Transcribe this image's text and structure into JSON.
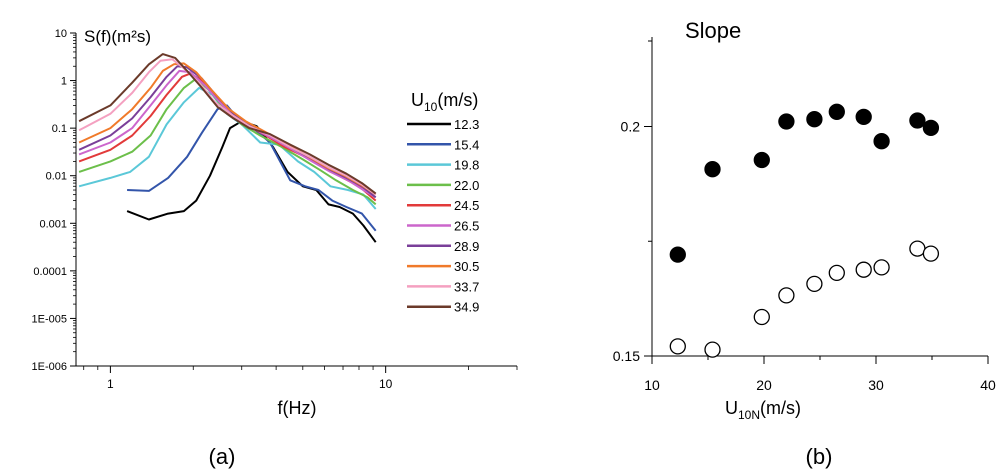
{
  "chart_data": [
    {
      "type": "line",
      "panel_label": "(a)",
      "ylabel": "S(f)(m²s)",
      "xlabel": "f(Hz)",
      "x_scale": "log",
      "y_scale": "log",
      "xlim": [
        0.75,
        30
      ],
      "ylim": [
        1e-06,
        10
      ],
      "x_ticks": [
        1,
        10
      ],
      "x_tick_labels": [
        "1",
        "10"
      ],
      "y_ticks": [
        10,
        1,
        0.1,
        0.01,
        0.001,
        0.0001,
        1e-05,
        1e-06
      ],
      "y_tick_labels": [
        "10",
        "1",
        "0.1",
        "0.01",
        "0.001",
        "0.0001",
        "1E-005",
        "1E-006"
      ],
      "legend_title": "U10(m/s)",
      "legend_title_main": "U",
      "legend_title_sub": "10",
      "legend_title_unit": "(m/s)",
      "legend_placement": "right",
      "series": [
        {
          "name": "12.3",
          "color": "#000000",
          "points": [
            [
              1.15,
              0.0018
            ],
            [
              1.38,
              0.0012
            ],
            [
              1.62,
              0.0016
            ],
            [
              1.85,
              0.0018
            ],
            [
              2.05,
              0.003
            ],
            [
              2.3,
              0.01
            ],
            [
              2.55,
              0.04
            ],
            [
              2.72,
              0.1
            ],
            [
              3.0,
              0.14
            ],
            [
              3.4,
              0.11
            ],
            [
              3.9,
              0.04
            ],
            [
              4.4,
              0.012
            ],
            [
              5.0,
              0.006
            ],
            [
              5.6,
              0.005
            ],
            [
              6.2,
              0.0025
            ],
            [
              6.8,
              0.0022
            ],
            [
              7.6,
              0.0016
            ],
            [
              8.3,
              0.0009
            ],
            [
              9.2,
              0.0004
            ]
          ]
        },
        {
          "name": "15.4",
          "color": "#3355aa",
          "points": [
            [
              1.15,
              0.005
            ],
            [
              1.38,
              0.0048
            ],
            [
              1.62,
              0.009
            ],
            [
              1.9,
              0.025
            ],
            [
              2.15,
              0.08
            ],
            [
              2.45,
              0.25
            ],
            [
              2.65,
              0.3
            ],
            [
              2.9,
              0.16
            ],
            [
              3.3,
              0.1
            ],
            [
              3.8,
              0.05
            ],
            [
              4.5,
              0.008
            ],
            [
              5.1,
              0.006
            ],
            [
              5.7,
              0.005
            ],
            [
              6.4,
              0.003
            ],
            [
              7.2,
              0.0022
            ],
            [
              8.2,
              0.0016
            ],
            [
              9.2,
              0.0007
            ]
          ]
        },
        {
          "name": "19.8",
          "color": "#5bc8d8",
          "points": [
            [
              0.77,
              0.006
            ],
            [
              1.0,
              0.009
            ],
            [
              1.18,
              0.012
            ],
            [
              1.38,
              0.025
            ],
            [
              1.6,
              0.12
            ],
            [
              1.85,
              0.35
            ],
            [
              2.1,
              0.7
            ],
            [
              2.35,
              0.5
            ],
            [
              2.65,
              0.2
            ],
            [
              3.0,
              0.12
            ],
            [
              3.5,
              0.05
            ],
            [
              4.1,
              0.045
            ],
            [
              4.8,
              0.02
            ],
            [
              5.5,
              0.012
            ],
            [
              6.3,
              0.006
            ],
            [
              7.3,
              0.005
            ],
            [
              8.3,
              0.004
            ],
            [
              9.2,
              0.002
            ]
          ]
        },
        {
          "name": "22.0",
          "color": "#6cbf4a",
          "points": [
            [
              0.77,
              0.012
            ],
            [
              1.0,
              0.02
            ],
            [
              1.2,
              0.032
            ],
            [
              1.4,
              0.07
            ],
            [
              1.6,
              0.25
            ],
            [
              1.85,
              0.7
            ],
            [
              2.05,
              1.1
            ],
            [
              2.3,
              0.6
            ],
            [
              2.6,
              0.25
            ],
            [
              3.0,
              0.12
            ],
            [
              3.5,
              0.07
            ],
            [
              4.2,
              0.04
            ],
            [
              5.0,
              0.022
            ],
            [
              5.8,
              0.013
            ],
            [
              6.6,
              0.008
            ],
            [
              7.6,
              0.005
            ],
            [
              8.6,
              0.0035
            ],
            [
              9.2,
              0.0025
            ]
          ]
        },
        {
          "name": "24.5",
          "color": "#e23a3a",
          "points": [
            [
              0.77,
              0.02
            ],
            [
              1.0,
              0.035
            ],
            [
              1.2,
              0.07
            ],
            [
              1.4,
              0.18
            ],
            [
              1.6,
              0.5
            ],
            [
              1.82,
              1.2
            ],
            [
              1.95,
              1.4
            ],
            [
              2.1,
              1.1
            ],
            [
              2.4,
              0.5
            ],
            [
              2.7,
              0.2
            ],
            [
              3.1,
              0.12
            ],
            [
              3.6,
              0.075
            ],
            [
              4.3,
              0.04
            ],
            [
              5.1,
              0.025
            ],
            [
              6.0,
              0.015
            ],
            [
              7.0,
              0.009
            ],
            [
              8.0,
              0.006
            ],
            [
              9.2,
              0.003
            ]
          ]
        },
        {
          "name": "26.5",
          "color": "#cc66cc",
          "points": [
            [
              0.77,
              0.028
            ],
            [
              1.0,
              0.05
            ],
            [
              1.2,
              0.1
            ],
            [
              1.4,
              0.3
            ],
            [
              1.6,
              0.8
            ],
            [
              1.78,
              1.6
            ],
            [
              1.95,
              1.5
            ],
            [
              2.2,
              0.8
            ],
            [
              2.5,
              0.35
            ],
            [
              2.9,
              0.15
            ],
            [
              3.3,
              0.1
            ],
            [
              3.9,
              0.06
            ],
            [
              4.6,
              0.035
            ],
            [
              5.4,
              0.02
            ],
            [
              6.3,
              0.012
            ],
            [
              7.3,
              0.008
            ],
            [
              8.3,
              0.005
            ],
            [
              9.2,
              0.0035
            ]
          ]
        },
        {
          "name": "28.9",
          "color": "#7a3f99",
          "points": [
            [
              0.77,
              0.035
            ],
            [
              1.0,
              0.07
            ],
            [
              1.2,
              0.16
            ],
            [
              1.4,
              0.45
            ],
            [
              1.6,
              1.2
            ],
            [
              1.75,
              2.0
            ],
            [
              1.9,
              1.9
            ],
            [
              2.15,
              1.1
            ],
            [
              2.45,
              0.45
            ],
            [
              2.8,
              0.2
            ],
            [
              3.2,
              0.12
            ],
            [
              3.8,
              0.07
            ],
            [
              4.5,
              0.04
            ],
            [
              5.3,
              0.024
            ],
            [
              6.2,
              0.014
            ],
            [
              7.2,
              0.009
            ],
            [
              8.2,
              0.006
            ],
            [
              9.2,
              0.0035
            ]
          ]
        },
        {
          "name": "30.5",
          "color": "#f07a2a",
          "points": [
            [
              0.77,
              0.05
            ],
            [
              1.0,
              0.1
            ],
            [
              1.2,
              0.25
            ],
            [
              1.4,
              0.7
            ],
            [
              1.55,
              1.6
            ],
            [
              1.7,
              2.2
            ],
            [
              1.85,
              2.3
            ],
            [
              2.05,
              1.5
            ],
            [
              2.35,
              0.6
            ],
            [
              2.7,
              0.25
            ],
            [
              3.1,
              0.14
            ],
            [
              3.7,
              0.08
            ],
            [
              4.4,
              0.045
            ],
            [
              5.2,
              0.026
            ],
            [
              6.1,
              0.015
            ],
            [
              7.1,
              0.01
            ],
            [
              8.1,
              0.0065
            ],
            [
              9.2,
              0.004
            ]
          ]
        },
        {
          "name": "33.7",
          "color": "#f4a0c0",
          "points": [
            [
              0.77,
              0.09
            ],
            [
              1.0,
              0.2
            ],
            [
              1.2,
              0.55
            ],
            [
              1.38,
              1.5
            ],
            [
              1.52,
              2.6
            ],
            [
              1.68,
              2.8
            ],
            [
              1.85,
              1.8
            ],
            [
              2.1,
              0.9
            ],
            [
              2.4,
              0.35
            ],
            [
              2.8,
              0.18
            ],
            [
              3.2,
              0.11
            ],
            [
              3.8,
              0.07
            ],
            [
              4.5,
              0.04
            ],
            [
              5.3,
              0.025
            ],
            [
              6.2,
              0.015
            ],
            [
              7.2,
              0.01
            ],
            [
              8.2,
              0.0065
            ],
            [
              9.2,
              0.004
            ]
          ]
        },
        {
          "name": "34.9",
          "color": "#6b3a2a",
          "points": [
            [
              0.77,
              0.14
            ],
            [
              1.0,
              0.3
            ],
            [
              1.2,
              0.9
            ],
            [
              1.38,
              2.2
            ],
            [
              1.55,
              3.6
            ],
            [
              1.72,
              3.0
            ],
            [
              1.9,
              1.6
            ],
            [
              2.15,
              0.7
            ],
            [
              2.45,
              0.28
            ],
            [
              2.8,
              0.16
            ],
            [
              3.2,
              0.1
            ],
            [
              3.8,
              0.075
            ],
            [
              4.5,
              0.045
            ],
            [
              5.3,
              0.028
            ],
            [
              6.2,
              0.017
            ],
            [
              7.2,
              0.011
            ],
            [
              8.2,
              0.007
            ],
            [
              9.2,
              0.0042
            ]
          ]
        }
      ]
    },
    {
      "type": "scatter",
      "panel_label": "(b)",
      "title": "Slope",
      "xlabel": "U10N(m/s)",
      "xlabel_main": "U",
      "xlabel_sub": "10N",
      "xlabel_unit": "(m/s)",
      "xlim": [
        10,
        40
      ],
      "ylim": [
        0.15,
        0.2195
      ],
      "x_ticks": [
        10,
        20,
        30,
        40
      ],
      "x_tick_labels": [
        "10",
        "20",
        "30",
        "40"
      ],
      "y_ticks": [
        0.15,
        0.2
      ],
      "y_tick_labels": [
        "0.15",
        "0.2"
      ],
      "series": [
        {
          "marker": "filled-circle",
          "color": "#000000",
          "x": [
            12.3,
            15.4,
            19.8,
            22.0,
            24.5,
            26.5,
            28.9,
            30.5,
            33.7,
            34.9
          ],
          "y": [
            0.1721,
            0.1907,
            0.1927,
            0.2011,
            0.2016,
            0.2032,
            0.2021,
            0.1968,
            0.2013,
            0.1997
          ]
        },
        {
          "marker": "open-circle",
          "color": "#000000",
          "x": [
            12.3,
            15.4,
            19.8,
            22.0,
            24.5,
            26.5,
            28.9,
            30.5,
            33.7,
            34.9
          ],
          "y": [
            0.1521,
            0.1514,
            0.1585,
            0.1632,
            0.1657,
            0.1681,
            0.1688,
            0.1693,
            0.1734,
            0.1723
          ]
        }
      ]
    }
  ]
}
